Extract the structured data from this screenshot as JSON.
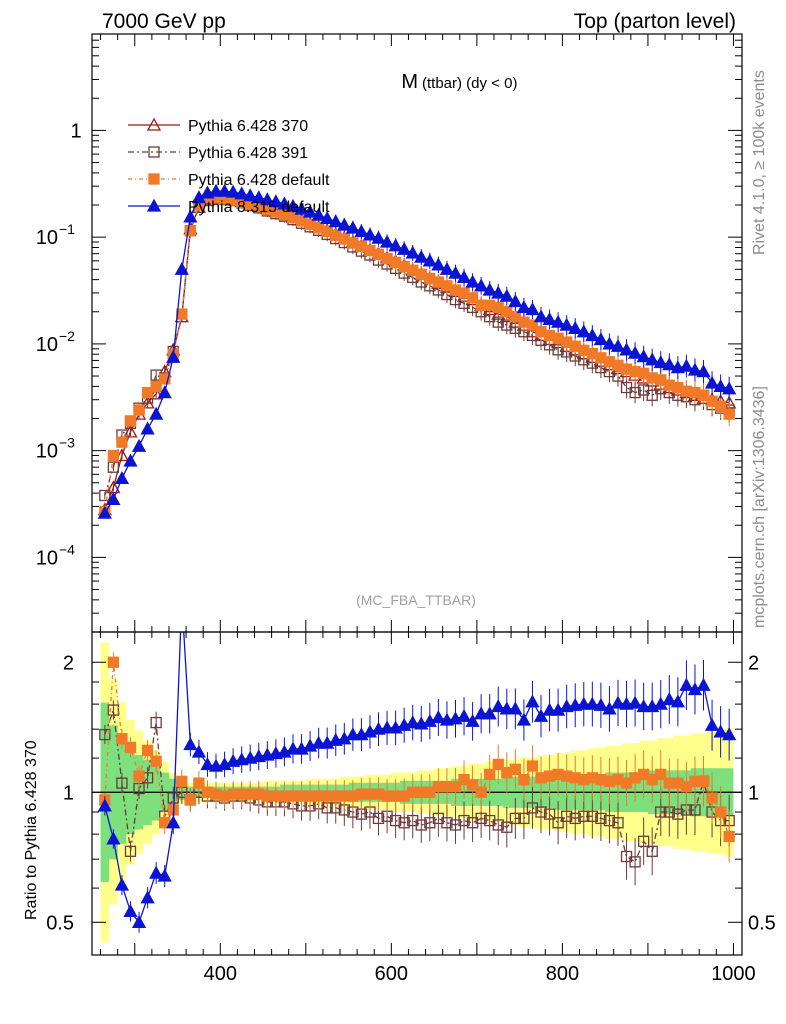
{
  "header": {
    "left": "7000 GeV pp",
    "right": "Top (parton level)"
  },
  "side_labels": {
    "events": "Rivet 4.1.0, ≥ 100k events",
    "source": "mcplots.cern.ch [arXiv:1306.3436]"
  },
  "plot_title": {
    "main": "M",
    "sub": "(ttbar) (dy < 0)"
  },
  "watermark": "(MC_FBA_TTBAR)",
  "chart_data": [
    {
      "type": "line",
      "panel": "main",
      "yscale": "log",
      "ylim": [
        2e-05,
        8
      ],
      "xlim": [
        250,
        1010
      ],
      "yticks": [
        {
          "v": 1,
          "label": "1"
        },
        {
          "v": 0.1,
          "label": "10",
          "exp": "−1"
        },
        {
          "v": 0.01,
          "label": "10",
          "exp": "−2"
        },
        {
          "v": 0.001,
          "label": "10",
          "exp": "−3"
        },
        {
          "v": 0.0001,
          "label": "10",
          "exp": "−4"
        }
      ],
      "x": [
        265,
        275,
        285,
        295,
        305,
        315,
        325,
        335,
        345,
        355,
        365,
        375,
        385,
        395,
        405,
        415,
        425,
        435,
        445,
        455,
        465,
        475,
        485,
        495,
        505,
        515,
        525,
        535,
        545,
        555,
        565,
        575,
        585,
        595,
        605,
        615,
        625,
        635,
        645,
        655,
        665,
        675,
        685,
        695,
        705,
        715,
        725,
        735,
        745,
        755,
        765,
        775,
        785,
        795,
        805,
        815,
        825,
        835,
        845,
        855,
        865,
        875,
        885,
        895,
        905,
        915,
        925,
        935,
        945,
        955,
        965,
        975,
        985,
        995
      ],
      "series": [
        {
          "name": "Pythia 6.428 370",
          "color": "#9a1818",
          "marker": "triangle-open",
          "dash": "",
          "values": [
            0.00028,
            0.00045,
            0.0009,
            0.0015,
            0.0022,
            0.0028,
            0.0034,
            0.0055,
            0.0088,
            0.018,
            0.12,
            0.19,
            0.225,
            0.235,
            0.232,
            0.225,
            0.215,
            0.205,
            0.195,
            0.185,
            0.175,
            0.165,
            0.155,
            0.145,
            0.134,
            0.124,
            0.115,
            0.106,
            0.098,
            0.09,
            0.083,
            0.076,
            0.07,
            0.064,
            0.059,
            0.054,
            0.049,
            0.045,
            0.041,
            0.037,
            0.034,
            0.031,
            0.028,
            0.026,
            0.023,
            0.021,
            0.019,
            0.018,
            0.016,
            0.015,
            0.013,
            0.012,
            0.011,
            0.0103,
            0.0095,
            0.0088,
            0.0081,
            0.0075,
            0.0069,
            0.0064,
            0.0059,
            0.0055,
            0.0051,
            0.0048,
            0.0045,
            0.0042,
            0.0039,
            0.0037,
            0.0035,
            0.0033,
            0.0031,
            0.003,
            0.0029,
            0.0028
          ]
        },
        {
          "name": "Pythia 6.428 391",
          "color": "#6b3a3a",
          "marker": "square-open",
          "dash": "6,3,2,3",
          "values": [
            0.00038,
            0.0007,
            0.0014,
            0.0018,
            0.0025,
            0.0031,
            0.0051,
            0.0048,
            0.0085,
            0.018,
            0.115,
            0.19,
            0.22,
            0.23,
            0.225,
            0.22,
            0.21,
            0.198,
            0.188,
            0.176,
            0.166,
            0.157,
            0.146,
            0.135,
            0.125,
            0.116,
            0.106,
            0.097,
            0.089,
            0.081,
            0.074,
            0.068,
            0.061,
            0.056,
            0.051,
            0.046,
            0.042,
            0.038,
            0.035,
            0.032,
            0.029,
            0.026,
            0.024,
            0.022,
            0.02,
            0.018,
            0.016,
            0.015,
            0.014,
            0.013,
            0.012,
            0.0108,
            0.0098,
            0.0088,
            0.0084,
            0.0077,
            0.0071,
            0.0066,
            0.006,
            0.0055,
            0.005,
            0.0039,
            0.0035,
            0.0037,
            0.0033,
            0.0038,
            0.0035,
            0.0033,
            0.0032,
            0.003,
            0.0033,
            0.0027,
            0.0025,
            0.0024
          ]
        },
        {
          "name": "Pythia 6.428 default",
          "color": "#f07a28",
          "marker": "square-filled",
          "dash": "4,3,1,3",
          "values": [
            0.00027,
            0.0009,
            0.0012,
            0.0019,
            0.0024,
            0.0035,
            0.004,
            0.0047,
            0.008,
            0.019,
            0.115,
            0.2,
            0.225,
            0.232,
            0.228,
            0.222,
            0.212,
            0.202,
            0.193,
            0.182,
            0.172,
            0.162,
            0.152,
            0.142,
            0.132,
            0.122,
            0.113,
            0.104,
            0.096,
            0.088,
            0.082,
            0.075,
            0.069,
            0.063,
            0.058,
            0.053,
            0.049,
            0.045,
            0.041,
            0.038,
            0.035,
            0.032,
            0.03,
            0.027,
            0.023,
            0.023,
            0.022,
            0.02,
            0.018,
            0.016,
            0.015,
            0.013,
            0.012,
            0.0113,
            0.0104,
            0.0095,
            0.0087,
            0.0081,
            0.0074,
            0.0068,
            0.0063,
            0.0058,
            0.0055,
            0.0053,
            0.0048,
            0.0046,
            0.0041,
            0.0039,
            0.0036,
            0.0035,
            0.0033,
            0.0029,
            0.0026,
            0.0022
          ]
        },
        {
          "name": "Pythia 8.315 default",
          "color": "#0a14d2",
          "marker": "triangle-filled",
          "dash": "",
          "values": [
            0.00026,
            0.00035,
            0.00055,
            0.0008,
            0.0011,
            0.0016,
            0.0022,
            0.0035,
            0.0075,
            0.05,
            0.155,
            0.235,
            0.26,
            0.27,
            0.27,
            0.265,
            0.255,
            0.245,
            0.235,
            0.225,
            0.215,
            0.205,
            0.195,
            0.183,
            0.172,
            0.161,
            0.15,
            0.14,
            0.13,
            0.122,
            0.113,
            0.105,
            0.098,
            0.09,
            0.083,
            0.077,
            0.071,
            0.065,
            0.06,
            0.055,
            0.05,
            0.046,
            0.042,
            0.038,
            0.035,
            0.032,
            0.03,
            0.028,
            0.025,
            0.022,
            0.021,
            0.018,
            0.017,
            0.016,
            0.015,
            0.014,
            0.013,
            0.012,
            0.011,
            0.01,
            0.0095,
            0.0088,
            0.0082,
            0.0076,
            0.0071,
            0.0067,
            0.0064,
            0.006,
            0.0062,
            0.0057,
            0.0055,
            0.0043,
            0.004,
            0.0038
          ]
        }
      ]
    },
    {
      "type": "line",
      "panel": "ratio",
      "yscale": "log",
      "ylabel": "Ratio to Pythia 6.428 370",
      "ylim": [
        0.42,
        2.35
      ],
      "xlim": [
        250,
        1010
      ],
      "yticks": [
        {
          "v": 2,
          "label": "2"
        },
        {
          "v": 1,
          "label": "1"
        },
        {
          "v": 0.5,
          "label": "0.5"
        }
      ],
      "xticks": [
        {
          "v": 400,
          "label": "400"
        },
        {
          "v": 600,
          "label": "600"
        },
        {
          "v": 800,
          "label": "800"
        },
        {
          "v": 1000,
          "label": "1000"
        }
      ],
      "reference": 1,
      "band_inner_color": "#7de07d",
      "band_outer_color": "#ffff8c",
      "x": [
        265,
        275,
        285,
        295,
        305,
        315,
        325,
        335,
        345,
        355,
        365,
        375,
        385,
        395,
        405,
        415,
        425,
        435,
        445,
        455,
        465,
        475,
        485,
        495,
        505,
        515,
        525,
        535,
        545,
        555,
        565,
        575,
        585,
        595,
        605,
        615,
        625,
        635,
        645,
        655,
        665,
        675,
        685,
        695,
        705,
        715,
        725,
        735,
        745,
        755,
        765,
        775,
        785,
        795,
        805,
        815,
        825,
        835,
        845,
        855,
        865,
        875,
        885,
        895,
        905,
        915,
        925,
        935,
        945,
        955,
        965,
        975,
        985,
        995
      ],
      "band_inner": [
        0.62,
        0.7,
        0.76,
        0.8,
        0.82,
        0.84,
        0.86,
        0.9,
        0.93,
        0.96,
        0.97,
        0.97,
        0.97,
        0.97,
        0.97,
        0.97,
        0.97,
        0.97,
        0.97,
        0.97,
        0.97,
        0.96,
        0.96,
        0.96,
        0.96,
        0.96,
        0.96,
        0.96,
        0.96,
        0.95,
        0.95,
        0.95,
        0.95,
        0.95,
        0.95,
        0.94,
        0.94,
        0.94,
        0.94,
        0.94,
        0.94,
        0.93,
        0.93,
        0.93,
        0.93,
        0.93,
        0.93,
        0.92,
        0.92,
        0.92,
        0.92,
        0.92,
        0.92,
        0.91,
        0.91,
        0.91,
        0.91,
        0.91,
        0.91,
        0.9,
        0.9,
        0.9,
        0.9,
        0.9,
        0.89,
        0.89,
        0.89,
        0.89,
        0.89,
        0.88,
        0.88,
        0.88,
        0.88,
        0.88
      ],
      "band_outer": [
        0.45,
        0.55,
        0.62,
        0.68,
        0.72,
        0.76,
        0.8,
        0.85,
        0.9,
        0.94,
        0.95,
        0.95,
        0.95,
        0.95,
        0.95,
        0.95,
        0.95,
        0.95,
        0.95,
        0.94,
        0.94,
        0.94,
        0.94,
        0.94,
        0.93,
        0.93,
        0.93,
        0.93,
        0.92,
        0.92,
        0.92,
        0.91,
        0.91,
        0.91,
        0.9,
        0.9,
        0.9,
        0.89,
        0.89,
        0.88,
        0.88,
        0.87,
        0.87,
        0.86,
        0.86,
        0.85,
        0.85,
        0.84,
        0.84,
        0.83,
        0.83,
        0.82,
        0.82,
        0.81,
        0.81,
        0.8,
        0.8,
        0.79,
        0.79,
        0.78,
        0.78,
        0.77,
        0.77,
        0.76,
        0.76,
        0.75,
        0.75,
        0.74,
        0.74,
        0.73,
        0.73,
        0.72,
        0.72,
        0.71
      ],
      "series": [
        {
          "name": "Pythia 6.428 391",
          "color": "#6b3a3a",
          "marker": "square-open",
          "dash": "6,3,2,3",
          "values": [
            1.36,
            1.55,
            1.05,
            0.73,
            1.02,
            1.08,
            1.45,
            0.88,
            0.97,
            1.0,
            0.96,
            1.0,
            0.98,
            0.98,
            0.97,
            0.98,
            0.98,
            0.97,
            0.96,
            0.95,
            0.95,
            0.95,
            0.94,
            0.93,
            0.93,
            0.94,
            0.92,
            0.92,
            0.91,
            0.9,
            0.89,
            0.9,
            0.87,
            0.88,
            0.86,
            0.85,
            0.86,
            0.84,
            0.85,
            0.87,
            0.85,
            0.84,
            0.86,
            0.85,
            0.87,
            0.86,
            0.84,
            0.83,
            0.87,
            0.87,
            0.92,
            0.9,
            0.89,
            0.85,
            0.88,
            0.87,
            0.88,
            0.88,
            0.87,
            0.86,
            0.85,
            0.71,
            0.69,
            0.77,
            0.73,
            0.9,
            0.9,
            0.89,
            0.91,
            0.91,
            1.06,
            0.9,
            0.86,
            0.86
          ]
        },
        {
          "name": "Pythia 6.428 default",
          "color": "#f07a28",
          "marker": "square-filled",
          "dash": "4,3,1,3",
          "values": [
            0.96,
            2.0,
            1.33,
            1.27,
            1.09,
            1.25,
            1.18,
            0.85,
            0.91,
            1.06,
            0.96,
            1.05,
            1.0,
            0.99,
            0.98,
            0.99,
            0.99,
            0.99,
            0.99,
            0.98,
            0.98,
            0.98,
            0.98,
            0.98,
            0.98,
            0.98,
            0.98,
            0.98,
            0.98,
            0.98,
            0.99,
            0.99,
            0.99,
            0.98,
            0.98,
            0.98,
            1.0,
            1.0,
            1.0,
            1.03,
            1.03,
            1.03,
            1.07,
            1.04,
            1.0,
            1.1,
            1.16,
            1.11,
            1.13,
            1.07,
            1.15,
            1.08,
            1.09,
            1.1,
            1.09,
            1.08,
            1.07,
            1.08,
            1.07,
            1.06,
            1.07,
            1.05,
            1.08,
            1.1,
            1.07,
            1.1,
            1.05,
            1.05,
            1.03,
            1.06,
            1.06,
            0.97,
            0.9,
            0.79
          ]
        },
        {
          "name": "Pythia 8.315 default",
          "color": "#0a14d2",
          "marker": "triangle-filled",
          "dash": "",
          "values": [
            0.93,
            0.78,
            0.61,
            0.53,
            0.5,
            0.57,
            0.65,
            0.64,
            0.85,
            2.8,
            1.29,
            1.24,
            1.16,
            1.15,
            1.16,
            1.18,
            1.19,
            1.2,
            1.21,
            1.22,
            1.23,
            1.24,
            1.26,
            1.26,
            1.28,
            1.3,
            1.3,
            1.32,
            1.33,
            1.36,
            1.36,
            1.38,
            1.4,
            1.41,
            1.41,
            1.43,
            1.45,
            1.44,
            1.46,
            1.49,
            1.47,
            1.48,
            1.5,
            1.46,
            1.52,
            1.52,
            1.58,
            1.56,
            1.56,
            1.47,
            1.62,
            1.5,
            1.55,
            1.55,
            1.58,
            1.59,
            1.6,
            1.6,
            1.59,
            1.56,
            1.61,
            1.6,
            1.61,
            1.58,
            1.58,
            1.6,
            1.64,
            1.62,
            1.77,
            1.73,
            1.77,
            1.43,
            1.38,
            1.36
          ]
        }
      ]
    }
  ]
}
